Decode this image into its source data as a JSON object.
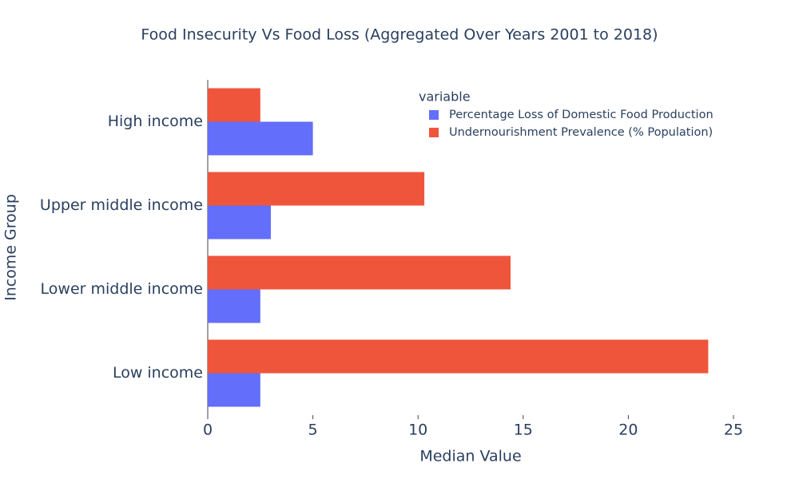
{
  "chart_data": {
    "type": "hbar",
    "title": "Food Insecurity Vs Food Loss (Aggregated Over Years 2001 to 2018)",
    "x_label": "Median Value",
    "y_label": "Income Group",
    "legend_title": "variable",
    "categories": [
      "High income",
      "Upper middle income",
      "Lower middle income",
      "Low income"
    ],
    "series": [
      {
        "name": "Percentage Loss of Domestic Food Production",
        "color": "#636efa",
        "values": [
          5.0,
          3.0,
          2.5,
          2.5
        ]
      },
      {
        "name": "Undernourishment Prevalence (% Population)",
        "color": "#ef553b",
        "values": [
          2.5,
          10.3,
          14.4,
          23.8
        ]
      }
    ],
    "xlim": [
      0,
      25
    ],
    "xticks": [
      0,
      5,
      10,
      15,
      20,
      25
    ],
    "grid": false
  }
}
